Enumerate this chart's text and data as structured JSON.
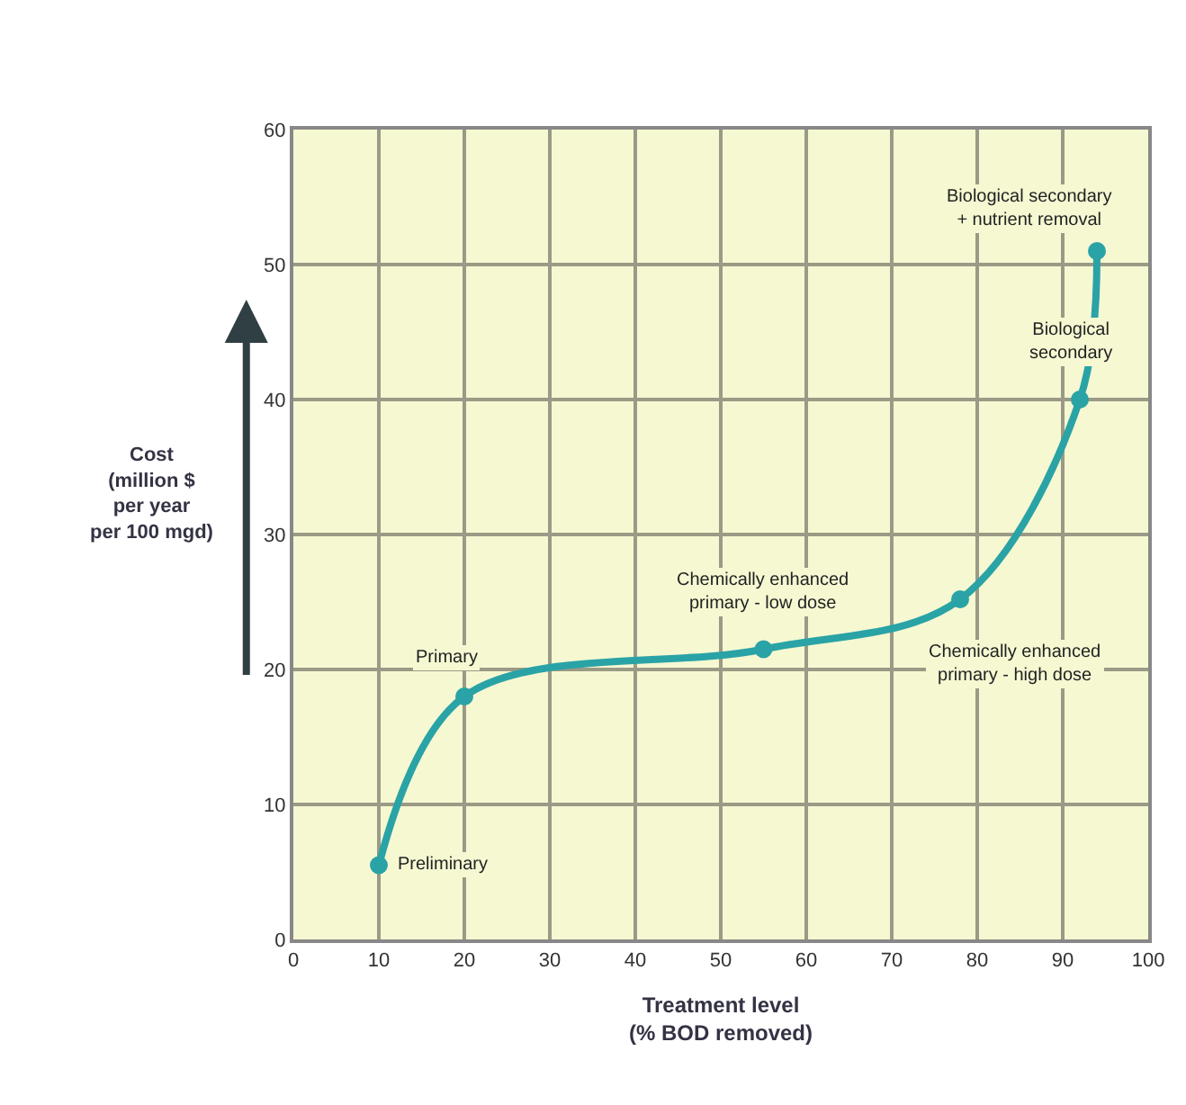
{
  "chart_data": {
    "type": "line",
    "xlabel": "Treatment level\n(% BOD removed)",
    "ylabel": "Cost\n(million $\nper year\nper 100 mgd)",
    "x": [
      10,
      20,
      55,
      78,
      92,
      94
    ],
    "series": [
      {
        "color": "#2aa3a6",
        "values": [
          5.5,
          18,
          21.5,
          25.2,
          40,
          51
        ]
      }
    ],
    "xlim": [
      0,
      100
    ],
    "xticks": [
      0,
      10,
      20,
      30,
      40,
      50,
      60,
      70,
      80,
      90,
      100
    ],
    "ylim": [
      0,
      60
    ],
    "yticks": [
      0,
      10,
      20,
      30,
      40,
      50,
      60
    ],
    "grid": true,
    "marker": "circle",
    "line_style": "solid",
    "annotations": [
      {
        "text": "Preliminary",
        "x": 10,
        "y": 5.5
      },
      {
        "text": "Primary",
        "x": 20,
        "y": 18
      },
      {
        "text": "Chemically enhanced\nprimary - low dose",
        "x": 55,
        "y": 21.5
      },
      {
        "text": "Chemically enhanced\nprimary - high dose",
        "x": 78,
        "y": 25.2
      },
      {
        "text": "Biological\nsecondary",
        "x": 92,
        "y": 40
      },
      {
        "text": "Biological secondary\n+ nutrient removal",
        "x": 94,
        "y": 51
      }
    ]
  }
}
